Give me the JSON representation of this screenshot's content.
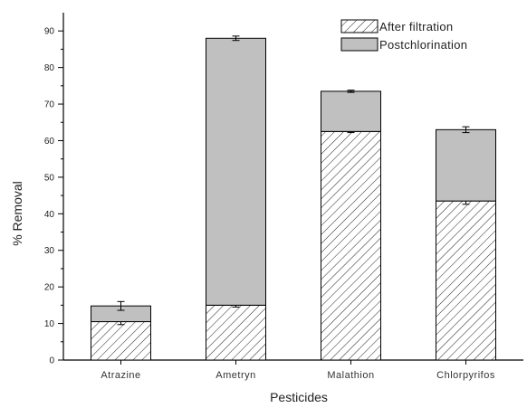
{
  "chart_data": {
    "type": "bar",
    "stacked": true,
    "categories": [
      "Atrazine",
      "Ametryn",
      "Malathion",
      "Chlorpyrifos"
    ],
    "series": [
      {
        "name": "After filtration",
        "pattern": "diagonal-hatch",
        "color": "#ffffff",
        "values": [
          10.5,
          15,
          62.5,
          43.5
        ],
        "error": [
          0.8,
          0.5,
          0.3,
          0.9
        ]
      },
      {
        "name": "Postchlorination",
        "color": "#c0c0c0",
        "values": [
          4.3,
          73,
          11,
          19.5
        ],
        "error": [
          1.2,
          0.6,
          0.3,
          0.8
        ]
      }
    ],
    "xlabel": "Pesticides",
    "ylabel": "% Removal",
    "ylim": [
      0,
      95
    ],
    "yticks": [
      0,
      10,
      20,
      30,
      40,
      50,
      60,
      70,
      80,
      90
    ],
    "grid": false,
    "legend_position": "top-right"
  }
}
